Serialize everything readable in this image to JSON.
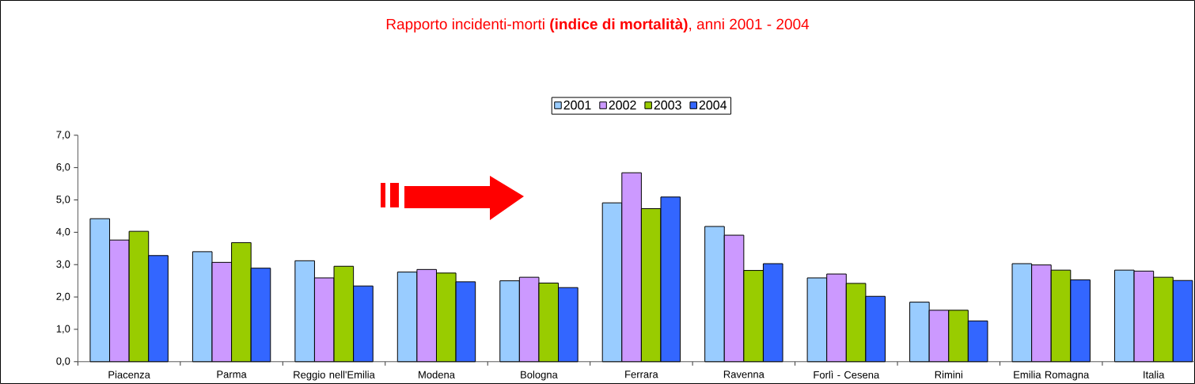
{
  "chart_data": {
    "type": "bar",
    "title": "Rapporto incidenti-morti **(indice di mortalità)**, anni 2001 - 2004",
    "categories": [
      "Piacenza",
      "Parma",
      "Reggio nell'Emilia",
      "Modena",
      "Bologna",
      "Ferrara",
      "Ravenna",
      "Forlì - Cesena",
      "Rimini",
      "Emilia Romagna",
      "Italia"
    ],
    "series": [
      {
        "name": "2001",
        "color": "#99ccff",
        "values": [
          4.42,
          3.4,
          3.12,
          2.77,
          2.5,
          4.91,
          4.18,
          2.59,
          1.84,
          3.03,
          2.83
        ]
      },
      {
        "name": "2002",
        "color": "#cc99ff",
        "values": [
          3.76,
          3.07,
          2.59,
          2.85,
          2.61,
          5.84,
          3.91,
          2.71,
          1.59,
          2.99,
          2.8
        ]
      },
      {
        "name": "2003",
        "color": "#99cc00",
        "values": [
          4.03,
          3.68,
          2.95,
          2.74,
          2.43,
          4.73,
          2.82,
          2.42,
          1.59,
          2.83,
          2.61
        ]
      },
      {
        "name": "2004",
        "color": "#3366ff",
        "values": [
          3.28,
          2.89,
          2.34,
          2.47,
          2.29,
          5.09,
          3.03,
          2.02,
          1.26,
          2.53,
          2.51
        ]
      }
    ],
    "ylim": [
      0,
      7
    ],
    "yticks": [
      {
        "value": 0,
        "label": "0,0"
      },
      {
        "value": 1,
        "label": "1,0"
      },
      {
        "value": 2,
        "label": "2,0"
      },
      {
        "value": 3,
        "label": "3,0"
      },
      {
        "value": 4,
        "label": "4,0"
      },
      {
        "value": 5,
        "label": "5,0"
      },
      {
        "value": 6,
        "label": "6,0"
      },
      {
        "value": 7,
        "label": "7,0"
      }
    ],
    "grid": false,
    "legend": "top"
  }
}
